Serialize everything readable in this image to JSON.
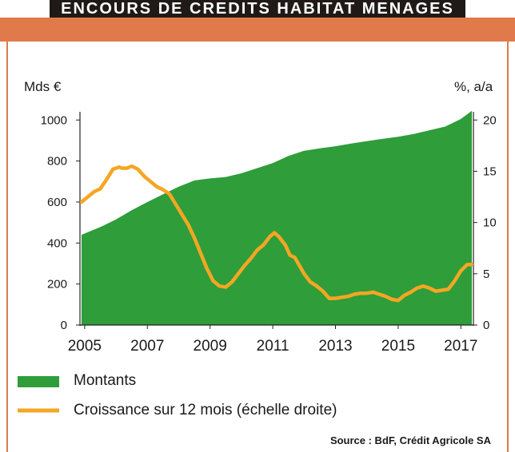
{
  "title": "ENCOURS DE CREDITS HABITAT MENAGES",
  "source": "Source : BdF, Crédit Agricole SA",
  "chart_data": {
    "type": "area",
    "y_left_label": "Mds €",
    "y_right_label": "%, a/a",
    "y_left_ticks": [
      0,
      200,
      400,
      600,
      800,
      1000
    ],
    "y_right_ticks": [
      0,
      5,
      10,
      15,
      20
    ],
    "y_left_range": [
      0,
      1040
    ],
    "y_right_range": [
      0,
      20.8
    ],
    "x_range": [
      2004.85,
      2017.4
    ],
    "x_ticks": [
      "2005",
      "2007",
      "2009",
      "2011",
      "2013",
      "2015",
      "2017"
    ],
    "x_tick_values": [
      2005,
      2007,
      2009,
      2011,
      2013,
      2015,
      2017
    ],
    "series": [
      {
        "name": "Montants",
        "kind": "area",
        "axis": "left",
        "color": "#2e9d3a",
        "x": [
          2004.9,
          2005.5,
          2006.0,
          2006.5,
          2007.0,
          2007.5,
          2008.0,
          2008.5,
          2009.0,
          2009.5,
          2010.0,
          2010.5,
          2011.0,
          2011.5,
          2012.0,
          2012.5,
          2013.0,
          2013.5,
          2014.0,
          2014.5,
          2015.0,
          2015.5,
          2016.0,
          2016.5,
          2017.0,
          2017.35
        ],
        "values": [
          440,
          478,
          515,
          560,
          600,
          638,
          675,
          705,
          715,
          722,
          740,
          765,
          790,
          825,
          850,
          862,
          872,
          885,
          897,
          908,
          918,
          932,
          950,
          968,
          1005,
          1045
        ]
      },
      {
        "name": "Croissance sur 12 mois (échelle droite)",
        "kind": "line",
        "axis": "right",
        "color": "#f5a623",
        "x": [
          2004.9,
          2005.1,
          2005.3,
          2005.5,
          2005.7,
          2005.9,
          2006.1,
          2006.2,
          2006.35,
          2006.5,
          2006.7,
          2006.9,
          2007.1,
          2007.3,
          2007.5,
          2007.7,
          2007.9,
          2008.1,
          2008.3,
          2008.5,
          2008.7,
          2008.9,
          2009.1,
          2009.3,
          2009.5,
          2009.7,
          2009.9,
          2010.1,
          2010.3,
          2010.5,
          2010.7,
          2010.9,
          2011.05,
          2011.2,
          2011.4,
          2011.55,
          2011.7,
          2011.85,
          2012.0,
          2012.2,
          2012.4,
          2012.6,
          2012.8,
          2013.0,
          2013.2,
          2013.4,
          2013.6,
          2013.8,
          2014.0,
          2014.2,
          2014.4,
          2014.6,
          2014.8,
          2015.0,
          2015.2,
          2015.4,
          2015.6,
          2015.8,
          2016.0,
          2016.2,
          2016.4,
          2016.6,
          2016.8,
          2017.0,
          2017.2,
          2017.35
        ],
        "values": [
          12.0,
          12.5,
          13.0,
          13.3,
          14.2,
          15.2,
          15.4,
          15.3,
          15.3,
          15.5,
          15.2,
          14.5,
          14.0,
          13.5,
          13.2,
          12.8,
          11.8,
          10.8,
          9.8,
          8.5,
          7.0,
          5.5,
          4.3,
          3.8,
          3.7,
          4.2,
          5.0,
          5.8,
          6.5,
          7.3,
          7.8,
          8.6,
          9.0,
          8.6,
          7.8,
          6.8,
          6.6,
          5.8,
          5.0,
          4.2,
          3.8,
          3.3,
          2.6,
          2.6,
          2.7,
          2.8,
          3.0,
          3.1,
          3.1,
          3.2,
          3.0,
          2.8,
          2.5,
          2.4,
          2.9,
          3.2,
          3.6,
          3.8,
          3.6,
          3.3,
          3.4,
          3.5,
          4.3,
          5.3,
          5.9,
          5.9
        ]
      }
    ],
    "grid": false
  }
}
